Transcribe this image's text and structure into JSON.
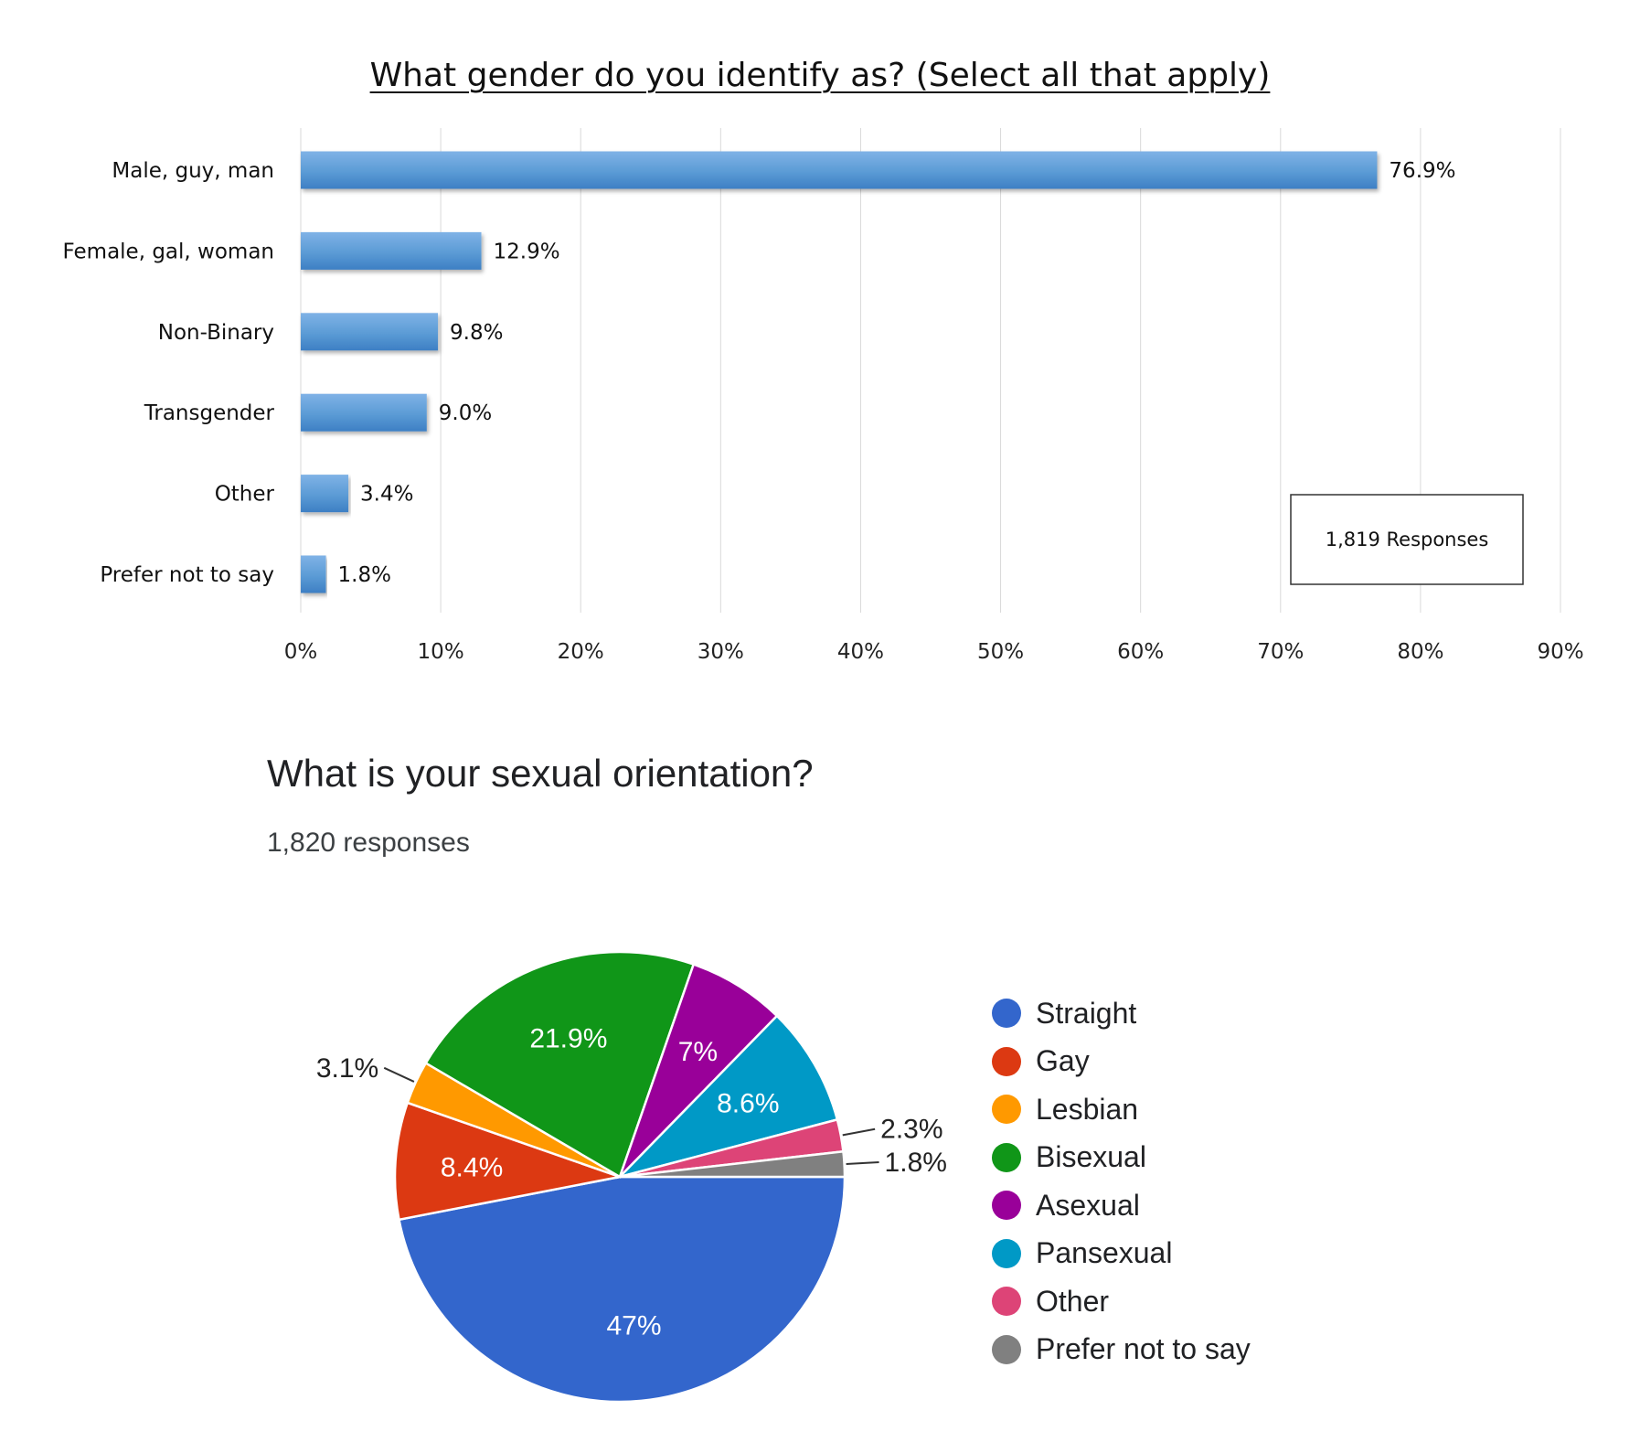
{
  "chart_data": [
    {
      "type": "bar",
      "orientation": "horizontal",
      "title": "What gender do you identify as? (Select all that apply)",
      "categories": [
        "Male, guy, man",
        "Female, gal, woman",
        "Non-Binary",
        "Transgender",
        "Other",
        "Prefer not to say"
      ],
      "values": [
        76.9,
        12.9,
        9.8,
        9.0,
        3.4,
        1.8
      ],
      "value_labels": [
        "76.9%",
        "12.9%",
        "9.8%",
        "9.0%",
        "3.4%",
        "1.8%"
      ],
      "xticks": [
        "0%",
        "10%",
        "20%",
        "30%",
        "40%",
        "50%",
        "60%",
        "70%",
        "80%",
        "90%"
      ],
      "xlim": [
        0,
        90
      ],
      "grid": true,
      "bar_color": "#5b9bd5",
      "annotation": "1,819  Responses",
      "annotation_placement": "bottom-right"
    },
    {
      "type": "pie",
      "title": "What is your sexual orientation?",
      "subtitle": "1,820 responses",
      "legend_placement": "right",
      "slices": [
        {
          "label": "Straight",
          "value": 47,
          "display": "47%",
          "color": "#3366cc"
        },
        {
          "label": "Gay",
          "value": 8.4,
          "display": "8.4%",
          "color": "#dc3912"
        },
        {
          "label": "Lesbian",
          "value": 3.1,
          "display": "3.1%",
          "color": "#ff9900"
        },
        {
          "label": "Bisexual",
          "value": 21.9,
          "display": "21.9%",
          "color": "#109618"
        },
        {
          "label": "Asexual",
          "value": 7,
          "display": "7%",
          "color": "#990099"
        },
        {
          "label": "Pansexual",
          "value": 8.6,
          "display": "8.6%",
          "color": "#0099c6"
        },
        {
          "label": "Other",
          "value": 2.3,
          "display": "2.3%",
          "color": "#dd4477"
        },
        {
          "label": "Prefer not to say",
          "value": 1.8,
          "display": "1.8%",
          "color": "#808080"
        }
      ]
    }
  ]
}
